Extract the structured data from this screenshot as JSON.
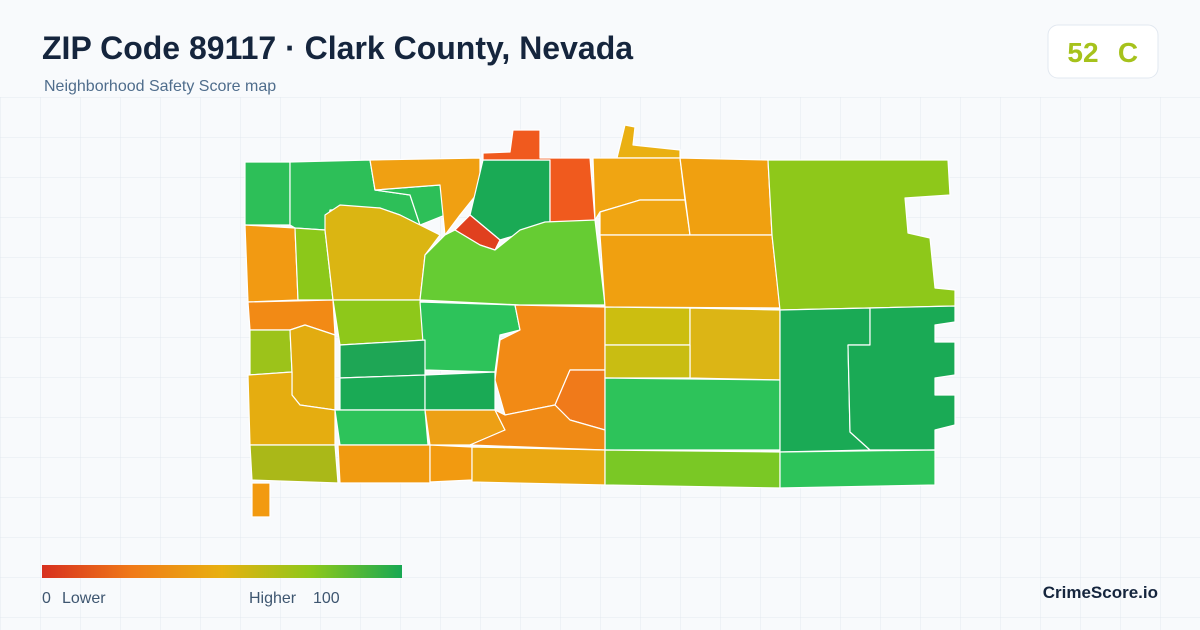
{
  "header": {
    "title": "ZIP Code 89117 · Clark County, Nevada",
    "subtitle": "Neighborhood Safety Score map"
  },
  "score": {
    "value": 52,
    "grade": "C"
  },
  "legend": {
    "min": 0,
    "min_label": "Lower",
    "max_label": "Higher",
    "max": 100
  },
  "brand": "CrimeScore.io"
}
